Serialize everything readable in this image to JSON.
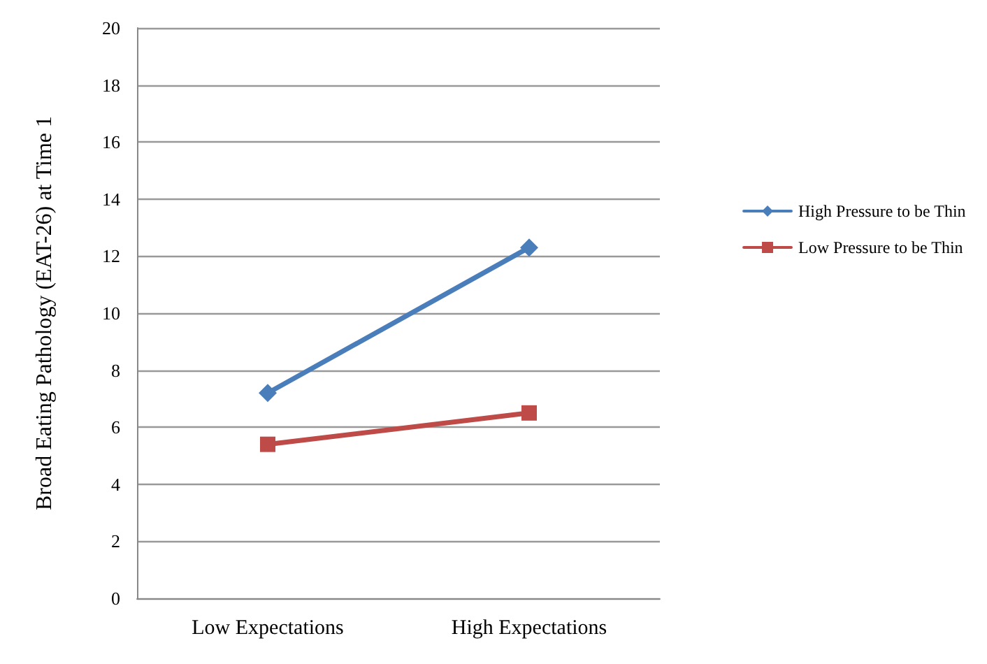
{
  "chart_data": {
    "type": "line",
    "ylabel": "Broad Eating Pathology (EAT-26) at Time 1",
    "categories": [
      "Low Expectations",
      "High Expectations"
    ],
    "series": [
      {
        "name": "High Pressure to be Thin",
        "color": "#4a7ebb",
        "values": [
          7.2,
          12.3
        ],
        "marker": "diamond"
      },
      {
        "name": "Low Pressure to be Thin",
        "color": "#be4b48",
        "values": [
          5.4,
          6.5
        ],
        "marker": "square"
      }
    ],
    "ylim": [
      0,
      20
    ],
    "yticks": [
      0,
      2,
      4,
      6,
      8,
      10,
      12,
      14,
      16,
      18,
      20
    ],
    "grid": "y",
    "legend": "right"
  }
}
